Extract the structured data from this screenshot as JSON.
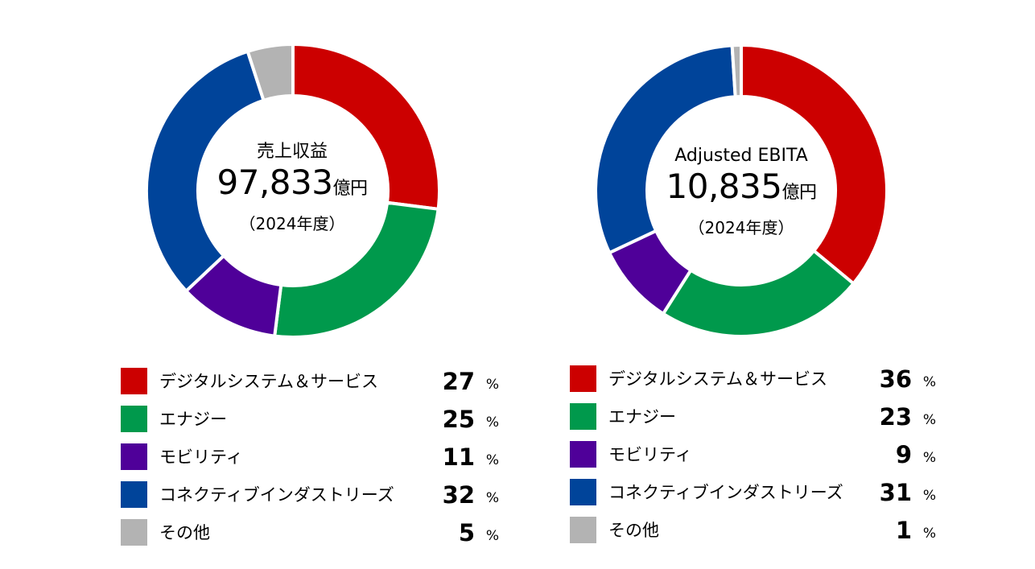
{
  "colors": {
    "digital": "#cc0000",
    "energy": "#00994c",
    "mobility": "#4f0099",
    "connective": "#00449a",
    "other": "#b3b3b3"
  },
  "chart_data": [
    {
      "type": "pie",
      "variant": "donut",
      "center": {
        "title": "売上収益",
        "value": "97,833",
        "unit": "億円",
        "period": "（2024年度）"
      },
      "categories": [
        "デジタルシステム＆サービス",
        "エナジー",
        "モビリティ",
        "コネクティブインダストリーズ",
        "その他"
      ],
      "values": [
        27,
        25,
        11,
        32,
        5
      ],
      "value_suffix": "%",
      "colors": [
        "#cc0000",
        "#00994c",
        "#4f0099",
        "#00449a",
        "#b3b3b3"
      ]
    },
    {
      "type": "pie",
      "variant": "donut",
      "center": {
        "title": "Adjusted EBITA",
        "value": "10,835",
        "unit": "億円",
        "period": "（2024年度）"
      },
      "categories": [
        "デジタルシステム＆サービス",
        "エナジー",
        "モビリティ",
        "コネクティブインダストリーズ",
        "その他"
      ],
      "values": [
        36,
        23,
        9,
        31,
        1
      ],
      "value_suffix": "%",
      "colors": [
        "#cc0000",
        "#00994c",
        "#4f0099",
        "#00449a",
        "#b3b3b3"
      ]
    }
  ]
}
